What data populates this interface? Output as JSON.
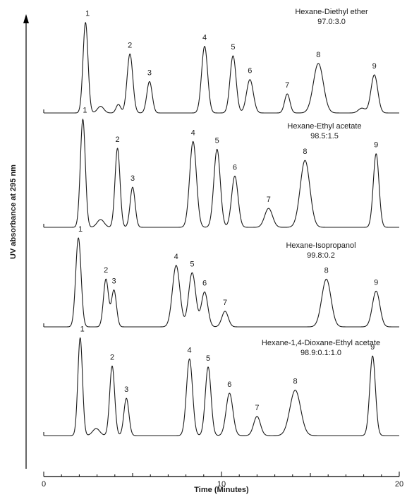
{
  "chart_data": {
    "type": "line",
    "title": "",
    "xlabel": "Time (Minutes)",
    "ylabel": "UV absorbance at 295 nm",
    "xlim": [
      0,
      20
    ],
    "x_ticks": [
      0,
      10,
      20
    ],
    "x_tick_labels": [
      "0",
      "10",
      "20"
    ],
    "grid": false,
    "legend": "none",
    "series": [
      {
        "label": "Hexane-Diethyl ether",
        "ratio": "97.0:3.0",
        "peaks": [
          {
            "label": "1",
            "t": 2.35,
            "h": 0.95,
            "w": 0.14
          },
          {
            "label": "2",
            "t": 4.85,
            "h": 0.62,
            "w": 0.16
          },
          {
            "label": "3",
            "t": 5.95,
            "h": 0.33,
            "w": 0.15
          },
          {
            "label": "4",
            "t": 9.05,
            "h": 0.7,
            "w": 0.17
          },
          {
            "label": "5",
            "t": 10.65,
            "h": 0.6,
            "w": 0.17
          },
          {
            "label": "6",
            "t": 11.6,
            "h": 0.35,
            "w": 0.19
          },
          {
            "label": "7",
            "t": 13.7,
            "h": 0.2,
            "w": 0.15
          },
          {
            "label": "8",
            "t": 15.45,
            "h": 0.52,
            "w": 0.28
          },
          {
            "label": "9",
            "t": 18.6,
            "h": 0.4,
            "w": 0.19
          }
        ],
        "minor_peaks": [
          {
            "t": 3.2,
            "h": 0.07,
            "w": 0.18
          },
          {
            "t": 4.2,
            "h": 0.09,
            "w": 0.13
          },
          {
            "t": 17.9,
            "h": 0.05,
            "w": 0.2
          }
        ]
      },
      {
        "label": "Hexane-Ethyl acetate",
        "ratio": "98.5:1.5",
        "peaks": [
          {
            "label": "1",
            "t": 2.2,
            "h": 0.97,
            "w": 0.14
          },
          {
            "label": "2",
            "t": 4.15,
            "h": 0.71,
            "w": 0.14
          },
          {
            "label": "3",
            "t": 5.0,
            "h": 0.36,
            "w": 0.14
          },
          {
            "label": "4",
            "t": 8.4,
            "h": 0.77,
            "w": 0.19
          },
          {
            "label": "5",
            "t": 9.75,
            "h": 0.7,
            "w": 0.18
          },
          {
            "label": "6",
            "t": 10.75,
            "h": 0.46,
            "w": 0.18
          },
          {
            "label": "7",
            "t": 12.65,
            "h": 0.17,
            "w": 0.22
          },
          {
            "label": "8",
            "t": 14.7,
            "h": 0.6,
            "w": 0.27
          },
          {
            "label": "9",
            "t": 18.7,
            "h": 0.66,
            "w": 0.16
          }
        ],
        "minor_peaks": [
          {
            "t": 3.2,
            "h": 0.07,
            "w": 0.2
          }
        ]
      },
      {
        "label": "Hexane-Isopropanol",
        "ratio": "99.8:0.2",
        "peaks": [
          {
            "label": "1",
            "t": 1.95,
            "h": 0.97,
            "w": 0.15
          },
          {
            "label": "2",
            "t": 3.5,
            "h": 0.52,
            "w": 0.14
          },
          {
            "label": "3",
            "t": 3.95,
            "h": 0.4,
            "w": 0.14
          },
          {
            "label": "4",
            "t": 7.45,
            "h": 0.67,
            "w": 0.21
          },
          {
            "label": "5",
            "t": 8.35,
            "h": 0.59,
            "w": 0.2
          },
          {
            "label": "6",
            "t": 9.05,
            "h": 0.38,
            "w": 0.18
          },
          {
            "label": "7",
            "t": 10.2,
            "h": 0.17,
            "w": 0.18
          },
          {
            "label": "8",
            "t": 15.9,
            "h": 0.52,
            "w": 0.26
          },
          {
            "label": "9",
            "t": 18.7,
            "h": 0.39,
            "w": 0.21
          }
        ],
        "minor_peaks": []
      },
      {
        "label": "Hexane-1,4-Dioxane-Ethyl acetate",
        "ratio": "98.9:0.1:1.0",
        "peaks": [
          {
            "label": "1",
            "t": 2.05,
            "h": 0.97,
            "w": 0.13
          },
          {
            "label": "2",
            "t": 3.85,
            "h": 0.69,
            "w": 0.14
          },
          {
            "label": "3",
            "t": 4.65,
            "h": 0.37,
            "w": 0.14
          },
          {
            "label": "4",
            "t": 8.2,
            "h": 0.76,
            "w": 0.17
          },
          {
            "label": "5",
            "t": 9.25,
            "h": 0.68,
            "w": 0.16
          },
          {
            "label": "6",
            "t": 10.45,
            "h": 0.42,
            "w": 0.19
          },
          {
            "label": "7",
            "t": 12.0,
            "h": 0.19,
            "w": 0.19
          },
          {
            "label": "8",
            "t": 14.15,
            "h": 0.45,
            "w": 0.3
          },
          {
            "label": "9",
            "t": 18.5,
            "h": 0.79,
            "w": 0.16
          }
        ],
        "minor_peaks": [
          {
            "t": 2.95,
            "h": 0.07,
            "w": 0.2
          }
        ]
      }
    ]
  }
}
